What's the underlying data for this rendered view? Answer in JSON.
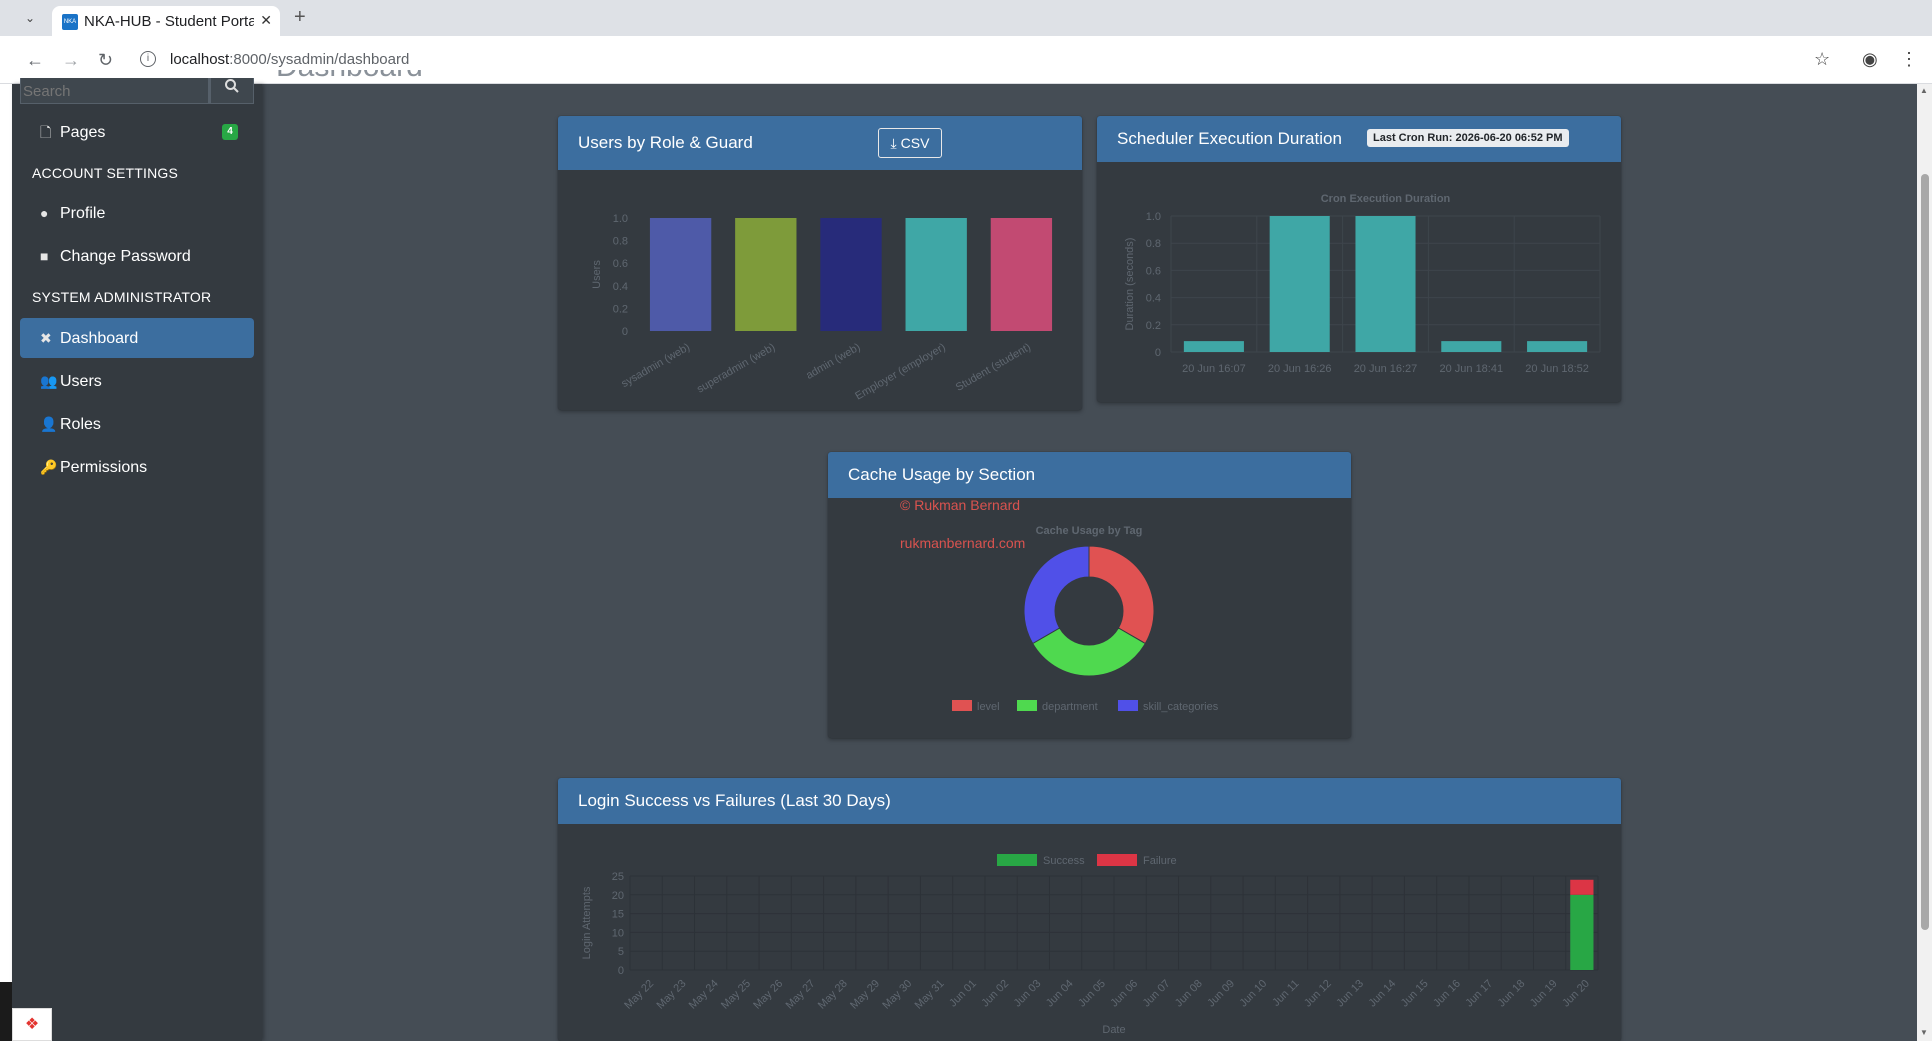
{
  "browser": {
    "tab_title": "NKA-HUB - Student Portal",
    "favicon_text": "NKA",
    "url_host": "localhost",
    "url_path": ":8000/sysadmin/dashboard"
  },
  "sidebar": {
    "search_placeholder": "Search",
    "pages": {
      "label": "Pages",
      "badge": "4"
    },
    "account_header": "ACCOUNT SETTINGS",
    "account_items": [
      {
        "label": "Profile",
        "icon": "user-icon"
      },
      {
        "label": "Change Password",
        "icon": "lock-icon"
      }
    ],
    "admin_header": "SYSTEM ADMINISTRATOR",
    "admin_items": [
      {
        "label": "Dashboard",
        "icon": "tools-icon",
        "active": true
      },
      {
        "label": "Users",
        "icon": "users-icon"
      },
      {
        "label": "Roles",
        "icon": "user-cog-icon"
      },
      {
        "label": "Permissions",
        "icon": "key-icon"
      }
    ]
  },
  "page": {
    "title": "Dashboard"
  },
  "cards": {
    "users_by_role": {
      "title": "Users by Role & Guard",
      "csv_label": "CSV"
    },
    "scheduler": {
      "title": "Scheduler Execution Duration",
      "badge": "Last Cron Run: 2026-06-20 06:52 PM"
    },
    "cache": {
      "title": "Cache Usage by Section",
      "watermark_1": "© Rukman Bernard",
      "watermark_2": "rukmanbernard.com"
    },
    "logins": {
      "title": "Login Success vs Failures (Last 30 Days)"
    }
  },
  "colors": {
    "card_header": "#3c6e9f",
    "sidebar": "#343a40",
    "content_bg": "#454d55"
  },
  "chart_data": [
    {
      "type": "bar",
      "ylabel": "Users",
      "categories": [
        "sysadmin (web)",
        "superadmin (web)",
        "admin (web)",
        "Employer (employer)",
        "Student (student)"
      ],
      "values": [
        1,
        1,
        1,
        1,
        1
      ],
      "ylim": [
        0,
        1.0
      ],
      "yticks": [
        "0",
        "0.2",
        "0.4",
        "0.6",
        "0.8",
        "1.0"
      ],
      "colors": [
        "#4e5aa8",
        "#7e9b3a",
        "#272b7a",
        "#3fa7a6",
        "#c24a72"
      ]
    },
    {
      "type": "bar",
      "title": "Cron Execution Duration",
      "ylabel": "Duration (seconds)",
      "categories": [
        "20 Jun 16:07",
        "20 Jun 16:26",
        "20 Jun 16:27",
        "20 Jun 18:41",
        "20 Jun 18:52"
      ],
      "values": [
        0.08,
        1.0,
        1.0,
        0.08,
        0.08
      ],
      "ylim": [
        0,
        1.0
      ],
      "yticks": [
        "0",
        "0.2",
        "0.4",
        "0.6",
        "0.8",
        "1.0"
      ],
      "color": "#3fa7a6"
    },
    {
      "type": "pie",
      "title": "Cache Usage by Tag",
      "labels": [
        "level",
        "department",
        "skill_categories"
      ],
      "values": [
        1,
        1,
        1
      ],
      "colors": [
        "#e05252",
        "#4fd94f",
        "#5050e8"
      ]
    },
    {
      "type": "bar",
      "xlabel": "Date",
      "ylabel": "Login Attempts",
      "categories": [
        "May 22",
        "May 23",
        "May 24",
        "May 25",
        "May 26",
        "May 27",
        "May 28",
        "May 29",
        "May 30",
        "May 31",
        "Jun 01",
        "Jun 02",
        "Jun 03",
        "Jun 04",
        "Jun 05",
        "Jun 06",
        "Jun 07",
        "Jun 08",
        "Jun 09",
        "Jun 10",
        "Jun 11",
        "Jun 12",
        "Jun 13",
        "Jun 14",
        "Jun 15",
        "Jun 16",
        "Jun 17",
        "Jun 18",
        "Jun 19",
        "Jun 20"
      ],
      "series": [
        {
          "name": "Success",
          "color": "#28a745",
          "values": [
            0,
            0,
            0,
            0,
            0,
            0,
            0,
            0,
            0,
            0,
            0,
            0,
            0,
            0,
            0,
            0,
            0,
            0,
            0,
            0,
            0,
            0,
            0,
            0,
            0,
            0,
            0,
            0,
            0,
            20
          ]
        },
        {
          "name": "Failure",
          "color": "#dc3545",
          "values": [
            0,
            0,
            0,
            0,
            0,
            0,
            0,
            0,
            0,
            0,
            0,
            0,
            0,
            0,
            0,
            0,
            0,
            0,
            0,
            0,
            0,
            0,
            0,
            0,
            0,
            0,
            0,
            0,
            0,
            4
          ]
        }
      ],
      "stacked": true,
      "ylim": [
        0,
        25
      ],
      "yticks": [
        "0",
        "5",
        "10",
        "15",
        "20",
        "25"
      ]
    }
  ]
}
